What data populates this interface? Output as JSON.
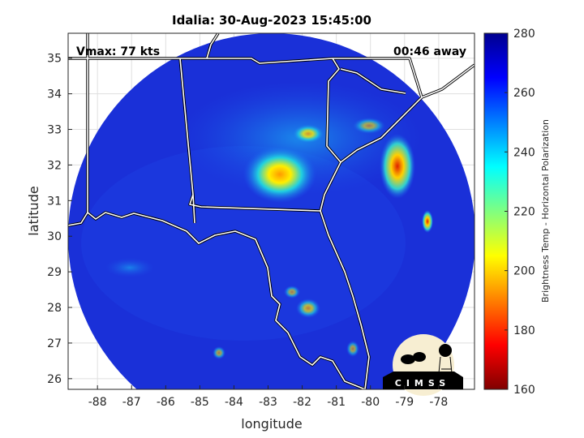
{
  "title": "Idalia: 30-Aug-2023 15:45:00",
  "annotations": {
    "vmax": "Vmax: 77 kts",
    "time_away": "00:46 away"
  },
  "x_axis": {
    "label": "longitude",
    "ticks": [
      -88,
      -87,
      -86,
      -85,
      -84,
      -83,
      -82,
      -81,
      -80,
      -79,
      -78
    ],
    "range": [
      -88.86,
      -76.95
    ]
  },
  "y_axis": {
    "label": "latitude",
    "ticks": [
      26,
      27,
      28,
      29,
      30,
      31,
      32,
      33,
      34,
      35
    ],
    "range": [
      25.7,
      35.7
    ]
  },
  "colorbar": {
    "label": "Brightness Temp - Horizontal Polarization",
    "ticks": [
      160,
      180,
      200,
      220,
      240,
      260,
      280
    ],
    "range": [
      160,
      280
    ],
    "colormap": "jet"
  },
  "logo": {
    "text": "CIMSS"
  },
  "grid": true,
  "colors": {
    "background_field": "#1a2fd6",
    "coastline": "#ffffff",
    "coastline_outline": "#000000"
  },
  "features": [
    {
      "name": "storm core",
      "lon": -82.8,
      "lat": 31.5,
      "tb": 215
    },
    {
      "name": "rainband",
      "lon": -79.4,
      "lat": 32.1,
      "tb": 185
    },
    {
      "name": "rainband",
      "lon": -78.4,
      "lat": 30.4,
      "tb": 180
    }
  ]
}
